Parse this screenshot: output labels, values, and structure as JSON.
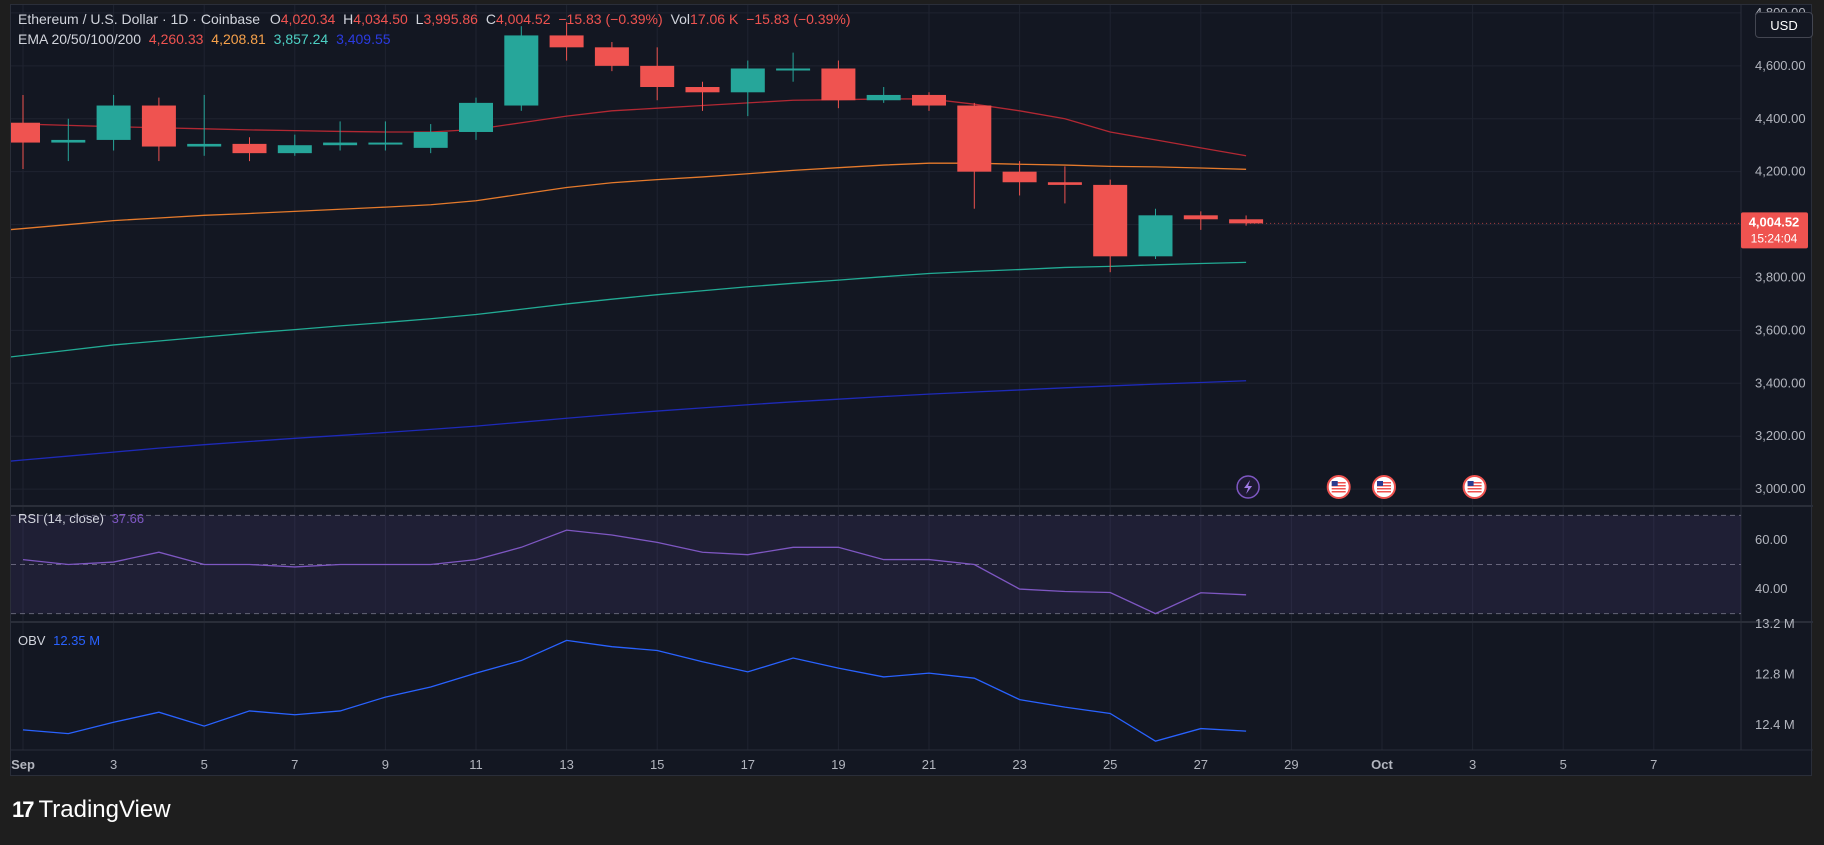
{
  "header": {
    "symbol": "Ethereum / U.S. Dollar · 1D · Coinbase",
    "open_label": "O",
    "open": "4,020.34",
    "high_label": "H",
    "high": "4,034.50",
    "low_label": "L",
    "low": "3,995.86",
    "close_label": "C",
    "close": "4,004.52",
    "change": "−15.83 (−0.39%)",
    "vol_label": "Vol",
    "vol": "17.06 K",
    "vol_change": "−15.83 (−0.39%)",
    "ema_label": "EMA 20/50/100/200",
    "ema20": "4,260.33",
    "ema50": "4,208.81",
    "ema100": "3,857.24",
    "ema200": "3,409.55"
  },
  "currency_button": "USD",
  "footer": {
    "brand": "TradingView",
    "logo_mark": "17"
  },
  "colors": {
    "up": "#26a69a",
    "down": "#ef5350",
    "ema20": "#b22833",
    "ema50": "#e57a2c",
    "ema100": "#22ab94",
    "ema200": "#1e2ab8",
    "rsi": "#7e57c2",
    "obv": "#2962ff"
  },
  "chart_data": [
    {
      "type": "candlestick",
      "title": "Ethereum / U.S. Dollar · 1D · Coinbase",
      "x": [
        "Sep 1",
        "Sep 2",
        "Sep 3",
        "Sep 4",
        "Sep 5",
        "Sep 6",
        "Sep 7",
        "Sep 8",
        "Sep 9",
        "Sep 10",
        "Sep 11",
        "Sep 12",
        "Sep 13",
        "Sep 14",
        "Sep 15",
        "Sep 16",
        "Sep 17",
        "Sep 18",
        "Sep 19",
        "Sep 20",
        "Sep 21",
        "Sep 22",
        "Sep 23",
        "Sep 24",
        "Sep 25",
        "Sep 26",
        "Sep 27",
        "Sep 28"
      ],
      "open": [
        4385,
        4310,
        4320,
        4450,
        4295,
        4305,
        4270,
        4300,
        4310,
        4290,
        4350,
        4450,
        4715,
        4670,
        4600,
        4520,
        4500,
        4590,
        4590,
        4470,
        4490,
        4450,
        4200,
        4160,
        4150,
        3880,
        4035,
        4020
      ],
      "high": [
        4490,
        4400,
        4490,
        4480,
        4490,
        4330,
        4340,
        4390,
        4390,
        4380,
        4480,
        4750,
        4765,
        4690,
        4670,
        4540,
        4620,
        4650,
        4620,
        4520,
        4500,
        4460,
        4240,
        4220,
        4170,
        4060,
        4050,
        4034.5
      ],
      "low": [
        4210,
        4240,
        4280,
        4240,
        4260,
        4240,
        4260,
        4280,
        4280,
        4270,
        4320,
        4430,
        4620,
        4580,
        4470,
        4430,
        4410,
        4540,
        4440,
        4460,
        4430,
        4060,
        4110,
        4080,
        3820,
        3870,
        3980,
        3995.86
      ],
      "close": [
        4310,
        4320,
        4450,
        4295,
        4305,
        4270,
        4300,
        4310,
        4310,
        4350,
        4460,
        4715,
        4670,
        4600,
        4520,
        4500,
        4590,
        4590,
        4470,
        4490,
        4450,
        4200,
        4160,
        4150,
        3880,
        4035,
        4020,
        4004.52
      ],
      "ema": [
        {
          "name": "EMA 20",
          "values": [
            4380,
            4375,
            4370,
            4366,
            4362,
            4358,
            4355,
            4352,
            4350,
            4350,
            4360,
            4385,
            4410,
            4430,
            4440,
            4450,
            4460,
            4470,
            4472,
            4475,
            4475,
            4455,
            4430,
            4400,
            4350,
            4320,
            4290,
            4260.33
          ]
        },
        {
          "name": "EMA 50",
          "values": [
            3985,
            4000,
            4015,
            4025,
            4035,
            4042,
            4050,
            4058,
            4066,
            4075,
            4090,
            4115,
            4140,
            4158,
            4170,
            4180,
            4192,
            4205,
            4215,
            4225,
            4232,
            4232,
            4228,
            4225,
            4220,
            4218,
            4214,
            4208.81
          ]
        },
        {
          "name": "EMA 100",
          "values": [
            3505,
            3525,
            3545,
            3560,
            3575,
            3590,
            3603,
            3617,
            3630,
            3644,
            3660,
            3680,
            3700,
            3718,
            3735,
            3750,
            3765,
            3778,
            3790,
            3803,
            3815,
            3823,
            3830,
            3838,
            3842,
            3848,
            3853,
            3857.24
          ]
        },
        {
          "name": "EMA 200",
          "values": [
            3110,
            3125,
            3140,
            3155,
            3168,
            3180,
            3192,
            3203,
            3214,
            3226,
            3238,
            3253,
            3268,
            3282,
            3295,
            3307,
            3319,
            3330,
            3340,
            3350,
            3359,
            3367,
            3375,
            3383,
            3390,
            3397,
            3403,
            3409.55
          ]
        }
      ],
      "ylim": [
        2940,
        4830
      ],
      "y_ticks": [
        "3,000.00",
        "3,200.00",
        "3,400.00",
        "3,600.00",
        "3,800.00",
        "4,000.00",
        "4,200.00",
        "4,400.00",
        "4,600.00",
        "4,800.00"
      ],
      "x_ticks": [
        "Sep",
        "3",
        "5",
        "7",
        "9",
        "11",
        "13",
        "15",
        "17",
        "19",
        "21",
        "23",
        "25",
        "27",
        "29",
        "Oct",
        "3",
        "5",
        "7"
      ],
      "last_price_label": "4,004.52",
      "countdown_label": "15:24:04",
      "grid": true
    },
    {
      "type": "line",
      "title": "RSI (14, close)",
      "current": "37.66",
      "values": [
        52,
        50,
        51,
        55,
        50,
        50,
        49,
        50,
        50,
        50,
        52,
        57,
        64,
        62,
        59,
        55,
        54,
        57,
        57,
        52,
        52,
        50,
        40,
        39,
        38.6,
        30,
        38.5,
        37.66
      ],
      "bands": [
        70,
        50,
        30
      ],
      "ylim": [
        27,
        73
      ],
      "y_ticks": [
        "40.00",
        "60.00"
      ]
    },
    {
      "type": "line",
      "title": "OBV",
      "current": "12.35 M",
      "values": [
        12.36,
        12.33,
        12.42,
        12.5,
        12.39,
        12.51,
        12.48,
        12.51,
        12.62,
        12.7,
        12.81,
        12.91,
        13.07,
        13.02,
        12.99,
        12.9,
        12.82,
        12.93,
        12.85,
        12.78,
        12.81,
        12.77,
        12.6,
        12.54,
        12.49,
        12.27,
        12.37,
        12.35
      ],
      "ylim": [
        12.2,
        13.2
      ],
      "y_ticks": [
        "12.4 M",
        "12.8 M",
        "13.2 M"
      ]
    }
  ],
  "event_markers": [
    {
      "date": "Sep 28",
      "icon": "lightning-icon"
    },
    {
      "date": "Sep 30",
      "icon": "us-flag-icon"
    },
    {
      "date": "Oct 1",
      "icon": "us-flag-icon"
    },
    {
      "date": "Oct 3",
      "icon": "us-flag-icon"
    }
  ]
}
